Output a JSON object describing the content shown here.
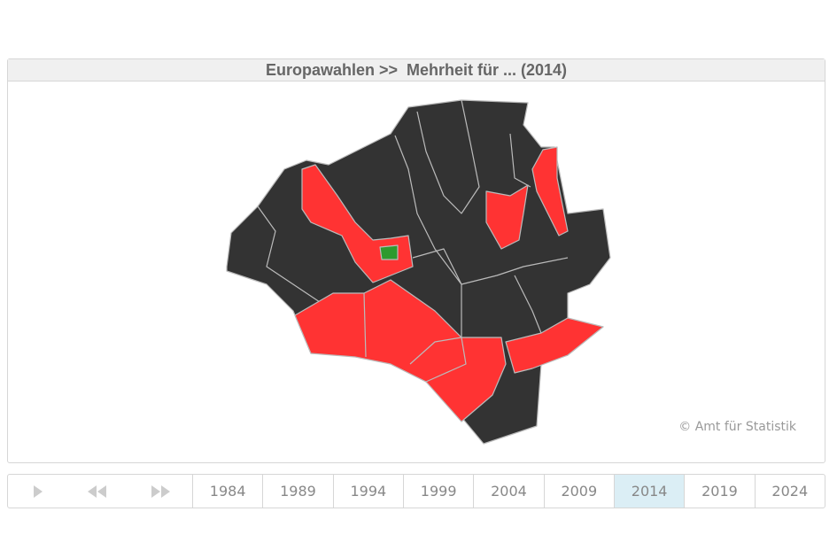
{
  "header": {
    "title": "Europawahlen >>  Mehrheit für ... (2014)"
  },
  "map": {
    "credit": "© Amt für Statistik"
  },
  "timeline": {
    "years": [
      "1984",
      "1989",
      "1994",
      "1999",
      "2004",
      "2009",
      "2014",
      "2019",
      "2024"
    ],
    "selected": "2014"
  }
}
